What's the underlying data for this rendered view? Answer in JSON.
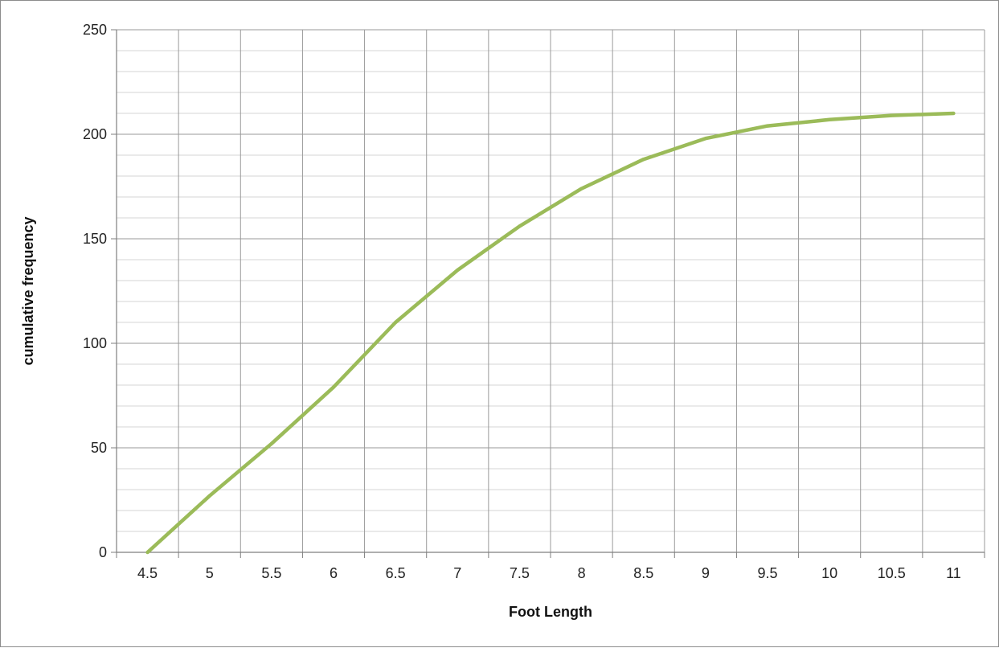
{
  "chart_data": {
    "type": "line",
    "title": "",
    "xlabel": "Foot Length",
    "ylabel": "cumulative frequency",
    "x_categories": [
      "4.5",
      "5",
      "5.5",
      "6",
      "6.5",
      "7",
      "7.5",
      "8",
      "8.5",
      "9",
      "9.5",
      "10",
      "10.5",
      "11"
    ],
    "y_ticks": [
      0,
      50,
      100,
      150,
      200,
      250
    ],
    "ylim": [
      0,
      250
    ],
    "y_minor_step": 10,
    "grid": true,
    "legend": "none",
    "series": [
      {
        "color": "#9bbb59",
        "x": [
          4.5,
          5,
          5.5,
          6,
          6.5,
          7,
          7.5,
          8,
          8.5,
          9,
          9.5,
          10,
          10.5,
          11
        ],
        "values": [
          0,
          27,
          52,
          79,
          110,
          135,
          156,
          174,
          188,
          198,
          204,
          207,
          209,
          210
        ]
      }
    ]
  }
}
